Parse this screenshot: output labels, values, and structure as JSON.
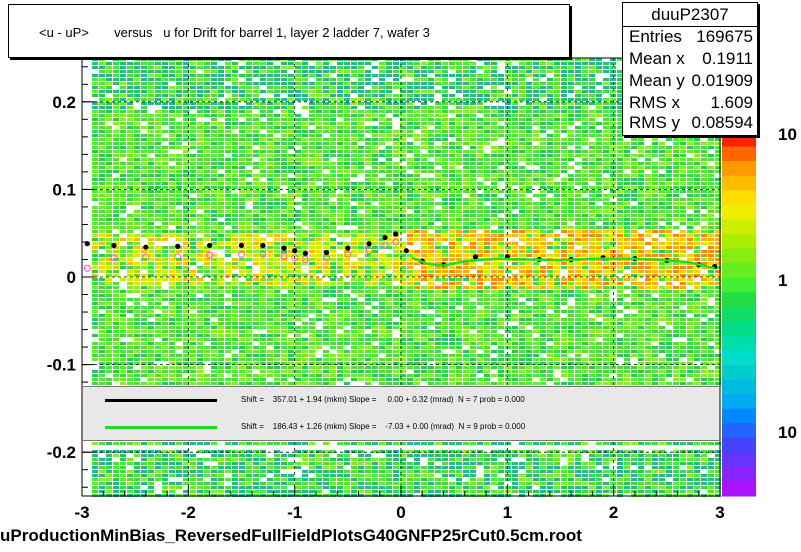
{
  "chart_data": {
    "type": "heatmap",
    "title": "<u - uP>       versus   u for Drift for barrel 1, layer 2 ladder 7, wafer 3",
    "xlabel": "",
    "ylabel": "",
    "xlim": [
      -3,
      3
    ],
    "ylim": [
      -0.25,
      0.25
    ],
    "x_ticks": [
      "-3",
      "-2",
      "-1",
      "0",
      "1",
      "2",
      "3"
    ],
    "y_ticks": [
      "-0.2",
      "-0.1",
      "0",
      "0.1",
      "0.2"
    ],
    "y_tick_values": [
      -0.2,
      -0.1,
      0,
      0.1,
      0.2
    ],
    "x_tick_values": [
      -3,
      -2,
      -1,
      0,
      1,
      2,
      3
    ],
    "dashed_gridlines_y": [
      -0.2,
      -0.1,
      0,
      0.1,
      0.2
    ],
    "colorbar_labels": [
      "10",
      "1",
      "10"
    ],
    "series": [
      {
        "name": "profile-black",
        "x": [
          -2.95,
          -2.7,
          -2.4,
          -2.1,
          -1.8,
          -1.5,
          -1.3,
          -1.1,
          -1.0,
          -0.9,
          -0.7,
          -0.5,
          -0.3,
          -0.15,
          -0.05,
          0.05,
          0.2,
          0.4,
          0.7,
          1.0,
          1.3,
          1.6,
          1.9,
          2.2,
          2.5,
          2.8,
          2.95
        ],
        "values": [
          0.038,
          0.036,
          0.034,
          0.035,
          0.036,
          0.036,
          0.036,
          0.033,
          0.03,
          0.027,
          0.028,
          0.033,
          0.038,
          0.045,
          0.049,
          0.03,
          0.018,
          0.014,
          0.023,
          0.023,
          0.02,
          0.02,
          0.022,
          0.021,
          0.019,
          0.014,
          0.012
        ]
      },
      {
        "name": "profile-magenta",
        "x": [
          -2.95,
          -2.7,
          -2.4,
          -2.1,
          -1.8,
          -1.5,
          -1.3,
          -1.1,
          -1.0,
          -0.9,
          -0.7,
          -0.5,
          -0.3,
          -0.15,
          -0.05
        ],
        "values": [
          0.01,
          0.022,
          0.023,
          0.023,
          0.025,
          0.026,
          0.026,
          0.024,
          0.022,
          0.02,
          0.022,
          0.026,
          0.03,
          0.036,
          0.04
        ]
      }
    ],
    "fit_curve": {
      "x": [
        0.1,
        0.25,
        0.4,
        0.6,
        0.9,
        1.2,
        1.5,
        1.8,
        2.1,
        2.4,
        2.7,
        2.95
      ],
      "values": [
        0.022,
        0.015,
        0.013,
        0.018,
        0.021,
        0.02,
        0.019,
        0.021,
        0.021,
        0.02,
        0.017,
        0.01
      ]
    }
  },
  "stats": {
    "name": "duuP2307",
    "rows": [
      {
        "key": "Entries",
        "value": "169675"
      },
      {
        "key": "Mean x",
        "value": "0.1911"
      },
      {
        "key": "Mean y",
        "value": "0.01909"
      },
      {
        "key": "RMS x",
        "value": "1.609"
      },
      {
        "key": "RMS y",
        "value": "0.08594"
      }
    ]
  },
  "fits": [
    {
      "color": "#000000",
      "text": "Shift =    357.01 + 1.94 (mkm) Slope =     0.00 + 0.32 (mrad)  N = 7 prob = 0.000"
    },
    {
      "color": "#22dd22",
      "text": "Shift =    186.43 + 1.26 (mkm) Slope =    -7.03 + 0.00 (mrad)  N = 9 prob = 0.000"
    }
  ],
  "footer": "uProductionMinBias_ReversedFullFieldPlotsG40GNFP25rCut0.5cm.root"
}
